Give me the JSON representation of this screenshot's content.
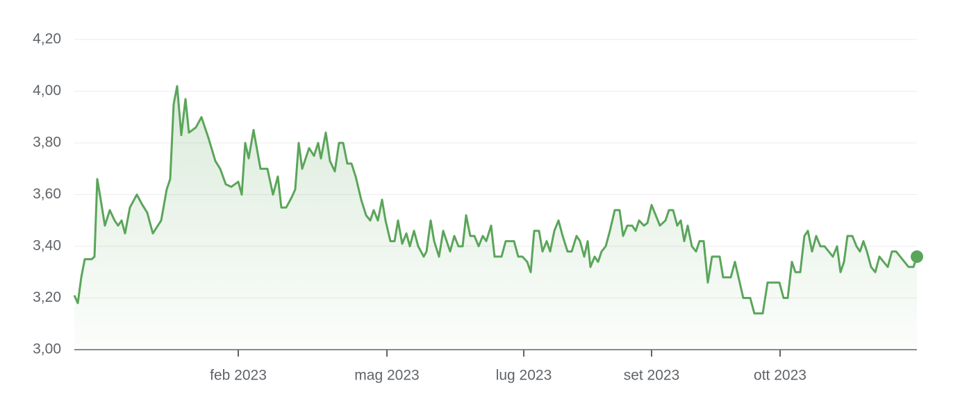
{
  "chart_data": {
    "type": "line",
    "x": [
      0,
      5,
      10,
      15,
      25,
      29,
      33,
      38,
      44,
      51,
      58,
      63,
      68,
      73,
      80,
      90,
      98,
      105,
      113,
      125,
      133,
      138,
      143,
      148,
      154,
      160,
      165,
      175,
      183,
      193,
      203,
      210,
      218,
      226,
      236,
      241,
      246,
      251,
      258,
      268,
      278,
      286,
      293,
      298,
      305,
      313,
      318,
      323,
      328,
      338,
      345,
      351,
      355,
      362,
      368,
      375,
      381,
      387,
      393,
      399,
      405,
      413,
      420,
      426,
      431,
      437,
      443,
      448,
      455,
      461,
      466,
      472,
      478,
      483,
      489,
      495,
      503,
      507,
      513,
      518,
      525,
      531,
      541,
      547,
      553,
      559,
      564,
      570,
      576,
      582,
      588,
      593,
      600,
      605,
      615,
      621,
      633,
      639,
      645,
      652,
      657,
      662,
      669,
      674,
      680,
      685,
      691,
      697,
      703,
      710,
      716,
      723,
      728,
      734,
      739,
      743,
      749,
      754,
      759,
      765,
      771,
      778,
      785,
      790,
      796,
      803,
      808,
      813,
      820,
      825,
      831,
      837,
      843,
      851,
      856,
      862,
      868,
      873,
      878,
      883,
      889,
      895,
      900,
      906,
      912,
      918,
      929,
      934,
      945,
      951,
      957,
      963,
      973,
      979,
      991,
      998,
      1015,
      1021,
      1027,
      1033,
      1038,
      1045,
      1051,
      1056,
      1062,
      1068,
      1074,
      1080,
      1086,
      1092,
      1098,
      1103,
      1108,
      1113,
      1120,
      1126,
      1131,
      1136,
      1141,
      1147,
      1153,
      1159,
      1165,
      1171,
      1177,
      1183,
      1189,
      1195,
      1201,
      1208,
      1213
    ],
    "series": [
      {
        "color": "#5aa55a",
        "values": [
          3.21,
          3.18,
          3.28,
          3.35,
          3.35,
          3.36,
          3.66,
          3.58,
          3.48,
          3.54,
          3.5,
          3.48,
          3.5,
          3.45,
          3.55,
          3.6,
          3.56,
          3.53,
          3.45,
          3.5,
          3.62,
          3.66,
          3.95,
          4.02,
          3.83,
          3.97,
          3.84,
          3.86,
          3.9,
          3.82,
          3.73,
          3.7,
          3.64,
          3.63,
          3.65,
          3.6,
          3.8,
          3.74,
          3.85,
          3.7,
          3.7,
          3.6,
          3.67,
          3.55,
          3.55,
          3.59,
          3.62,
          3.8,
          3.7,
          3.78,
          3.75,
          3.8,
          3.74,
          3.84,
          3.73,
          3.69,
          3.8,
          3.8,
          3.72,
          3.72,
          3.67,
          3.58,
          3.52,
          3.5,
          3.54,
          3.5,
          3.58,
          3.5,
          3.42,
          3.42,
          3.5,
          3.41,
          3.45,
          3.4,
          3.46,
          3.4,
          3.36,
          3.38,
          3.5,
          3.42,
          3.36,
          3.46,
          3.38,
          3.44,
          3.4,
          3.4,
          3.52,
          3.44,
          3.44,
          3.4,
          3.44,
          3.42,
          3.48,
          3.36,
          3.36,
          3.42,
          3.42,
          3.36,
          3.36,
          3.34,
          3.3,
          3.46,
          3.46,
          3.38,
          3.42,
          3.38,
          3.46,
          3.5,
          3.44,
          3.38,
          3.38,
          3.44,
          3.42,
          3.36,
          3.42,
          3.32,
          3.36,
          3.34,
          3.38,
          3.4,
          3.46,
          3.54,
          3.54,
          3.44,
          3.48,
          3.48,
          3.46,
          3.5,
          3.48,
          3.49,
          3.56,
          3.52,
          3.48,
          3.5,
          3.54,
          3.54,
          3.48,
          3.5,
          3.42,
          3.48,
          3.4,
          3.38,
          3.42,
          3.42,
          3.26,
          3.36,
          3.36,
          3.28,
          3.28,
          3.34,
          3.27,
          3.2,
          3.2,
          3.14,
          3.14,
          3.26,
          3.26,
          3.2,
          3.2,
          3.34,
          3.3,
          3.3,
          3.44,
          3.46,
          3.38,
          3.44,
          3.4,
          3.4,
          3.38,
          3.36,
          3.4,
          3.3,
          3.34,
          3.44,
          3.44,
          3.4,
          3.38,
          3.42,
          3.38,
          3.32,
          3.3,
          3.36,
          3.34,
          3.32,
          3.38,
          3.38,
          3.36,
          3.34,
          3.32,
          3.32,
          3.36
        ]
      }
    ],
    "xlim": [
      0,
      1213
    ],
    "xticks": [
      {
        "value": 236,
        "label": "feb 2023"
      },
      {
        "value": 450,
        "label": "mag 2023"
      },
      {
        "value": 647,
        "label": "lug 2023"
      },
      {
        "value": 831,
        "label": "set 2023"
      },
      {
        "value": 1016,
        "label": "ott 2023"
      }
    ],
    "ylim": [
      3.0,
      4.2
    ],
    "yticks": [
      {
        "value": 3.0,
        "label": "3,00"
      },
      {
        "value": 3.2,
        "label": "3,20"
      },
      {
        "value": 3.4,
        "label": "3,40"
      },
      {
        "value": 3.6,
        "label": "3,60"
      },
      {
        "value": 3.8,
        "label": "3,80"
      },
      {
        "value": 4.0,
        "label": "4,00"
      },
      {
        "value": 4.2,
        "label": "4,20"
      }
    ],
    "grid": true
  }
}
